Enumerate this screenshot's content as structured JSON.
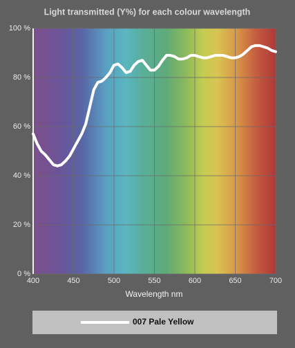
{
  "chart_data": {
    "type": "line",
    "title": "Light transmitted (Y%) for each colour wavelength",
    "x_label": "Wavelength nm",
    "x": [
      400,
      405,
      410,
      415,
      420,
      425,
      430,
      435,
      440,
      445,
      450,
      455,
      460,
      465,
      470,
      475,
      480,
      485,
      490,
      495,
      500,
      505,
      510,
      515,
      520,
      525,
      530,
      535,
      540,
      545,
      550,
      555,
      560,
      565,
      570,
      575,
      580,
      585,
      590,
      595,
      600,
      605,
      610,
      615,
      620,
      625,
      630,
      635,
      640,
      645,
      650,
      655,
      660,
      665,
      670,
      675,
      680,
      685,
      690,
      695,
      700
    ],
    "series": [
      {
        "name": "007 Pale Yellow",
        "color": "#ffffff",
        "values": [
          57,
          53,
          50,
          48.5,
          46.5,
          44.5,
          44,
          44.5,
          46,
          48,
          51,
          54,
          57,
          61,
          68,
          75,
          78,
          78.5,
          80,
          82,
          85,
          85.5,
          84,
          82,
          82.5,
          85,
          86.5,
          87,
          85,
          83,
          83,
          84.5,
          87,
          89,
          89,
          88.5,
          87.5,
          87.5,
          88,
          89,
          89,
          88.5,
          88,
          88,
          88.5,
          89,
          89,
          89,
          88.5,
          88,
          88,
          88.5,
          89.5,
          91,
          92.5,
          93,
          93,
          92.5,
          92,
          91,
          90.5
        ]
      }
    ],
    "xlim": [
      400,
      700
    ],
    "xticks": [
      400,
      450,
      500,
      550,
      600,
      650,
      700
    ],
    "ylim": [
      0,
      100
    ],
    "yticks": [
      {
        "value": 0,
        "label": "0 %"
      },
      {
        "value": 20,
        "label": "20 %"
      },
      {
        "value": 40,
        "label": "40 %"
      },
      {
        "value": 60,
        "label": "60 %"
      },
      {
        "value": 80,
        "label": "80 %"
      },
      {
        "value": 100,
        "label": "100 %"
      }
    ],
    "grid": true
  }
}
